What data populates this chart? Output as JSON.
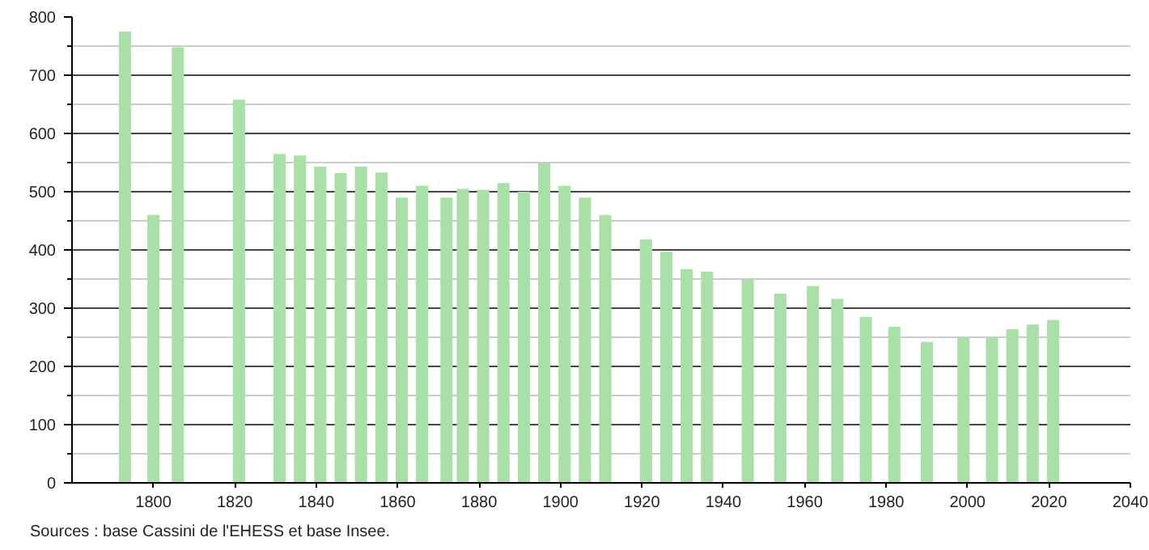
{
  "chart_data": {
    "type": "bar",
    "x": [
      1793,
      1800,
      1806,
      1821,
      1831,
      1836,
      1841,
      1846,
      1851,
      1856,
      1861,
      1866,
      1872,
      1876,
      1881,
      1886,
      1891,
      1896,
      1901,
      1906,
      1911,
      1921,
      1926,
      1931,
      1936,
      1946,
      1954,
      1962,
      1968,
      1975,
      1982,
      1990,
      1999,
      2006,
      2011,
      2016,
      2021
    ],
    "values": [
      775,
      460,
      748,
      658,
      565,
      562,
      543,
      532,
      543,
      533,
      490,
      510,
      490,
      505,
      503,
      515,
      500,
      550,
      510,
      490,
      460,
      418,
      397,
      367,
      363,
      350,
      325,
      338,
      316,
      285,
      268,
      242,
      250,
      250,
      264,
      272,
      280
    ],
    "color": "#a8e0a8",
    "xlim": [
      1780,
      2040
    ],
    "xticks": [
      1800,
      1820,
      1840,
      1860,
      1880,
      1900,
      1920,
      1940,
      1960,
      1980,
      2000,
      2020,
      2040
    ],
    "ylim": [
      0,
      800
    ],
    "yticks": [
      0,
      100,
      200,
      300,
      400,
      500,
      600,
      700,
      800
    ],
    "grid": "y",
    "annotations": [
      "Sources : base Cassini de l'EHESS et base Insee."
    ]
  }
}
